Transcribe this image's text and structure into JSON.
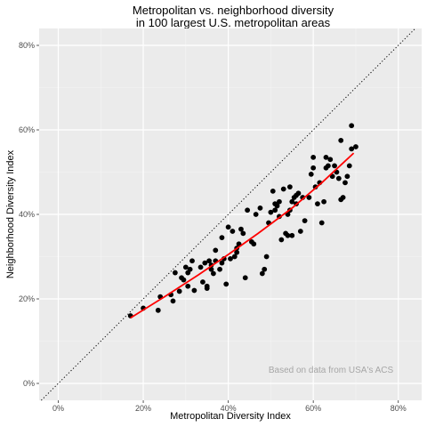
{
  "chart_data": {
    "type": "scatter",
    "title": "Metropolitan vs. neighborhood diversity",
    "subtitle": "in 100 largest U.S. metropolitan areas",
    "xlabel": "Metropolitan Diversity Index",
    "ylabel": "Neighborhood Diversity Index",
    "xlim": [
      -0.045,
      0.855
    ],
    "ylim": [
      -0.04,
      0.84
    ],
    "x_ticks": [
      0,
      0.2,
      0.4,
      0.6,
      0.8
    ],
    "x_tick_labels": [
      "0%",
      "20%",
      "40%",
      "60%",
      "80%"
    ],
    "y_ticks": [
      0,
      0.2,
      0.4,
      0.6,
      0.8
    ],
    "y_tick_labels": [
      "0%",
      "20%",
      "40%",
      "60%",
      "80%"
    ],
    "grid": true,
    "annotation": "Based on data from USA's ACS",
    "reference_line": {
      "type": "identity",
      "style": "dotted",
      "color": "#000000"
    },
    "fit_line": {
      "color": "#ff0000",
      "points": [
        [
          0.17,
          0.155
        ],
        [
          0.25,
          0.205
        ],
        [
          0.33,
          0.257
        ],
        [
          0.4,
          0.305
        ],
        [
          0.47,
          0.355
        ],
        [
          0.55,
          0.415
        ],
        [
          0.62,
          0.475
        ],
        [
          0.695,
          0.545
        ]
      ]
    },
    "points": [
      [
        0.17,
        0.16
      ],
      [
        0.2,
        0.178
      ],
      [
        0.235,
        0.173
      ],
      [
        0.24,
        0.205
      ],
      [
        0.265,
        0.21
      ],
      [
        0.27,
        0.195
      ],
      [
        0.275,
        0.262
      ],
      [
        0.285,
        0.218
      ],
      [
        0.29,
        0.25
      ],
      [
        0.295,
        0.245
      ],
      [
        0.3,
        0.275
      ],
      [
        0.305,
        0.23
      ],
      [
        0.305,
        0.262
      ],
      [
        0.31,
        0.27
      ],
      [
        0.315,
        0.29
      ],
      [
        0.32,
        0.22
      ],
      [
        0.335,
        0.275
      ],
      [
        0.34,
        0.24
      ],
      [
        0.345,
        0.285
      ],
      [
        0.35,
        0.225
      ],
      [
        0.35,
        0.23
      ],
      [
        0.355,
        0.29
      ],
      [
        0.36,
        0.27
      ],
      [
        0.36,
        0.28
      ],
      [
        0.365,
        0.26
      ],
      [
        0.37,
        0.29
      ],
      [
        0.37,
        0.315
      ],
      [
        0.38,
        0.27
      ],
      [
        0.385,
        0.285
      ],
      [
        0.385,
        0.345
      ],
      [
        0.39,
        0.295
      ],
      [
        0.395,
        0.235
      ],
      [
        0.4,
        0.37
      ],
      [
        0.405,
        0.295
      ],
      [
        0.41,
        0.36
      ],
      [
        0.415,
        0.3
      ],
      [
        0.42,
        0.31
      ],
      [
        0.42,
        0.32
      ],
      [
        0.425,
        0.33
      ],
      [
        0.43,
        0.365
      ],
      [
        0.435,
        0.355
      ],
      [
        0.44,
        0.25
      ],
      [
        0.445,
        0.41
      ],
      [
        0.455,
        0.335
      ],
      [
        0.46,
        0.33
      ],
      [
        0.465,
        0.4
      ],
      [
        0.475,
        0.415
      ],
      [
        0.48,
        0.26
      ],
      [
        0.485,
        0.27
      ],
      [
        0.49,
        0.3
      ],
      [
        0.495,
        0.38
      ],
      [
        0.5,
        0.405
      ],
      [
        0.505,
        0.455
      ],
      [
        0.51,
        0.41
      ],
      [
        0.51,
        0.425
      ],
      [
        0.515,
        0.42
      ],
      [
        0.52,
        0.395
      ],
      [
        0.52,
        0.43
      ],
      [
        0.525,
        0.34
      ],
      [
        0.53,
        0.46
      ],
      [
        0.535,
        0.355
      ],
      [
        0.54,
        0.35
      ],
      [
        0.54,
        0.4
      ],
      [
        0.545,
        0.41
      ],
      [
        0.545,
        0.465
      ],
      [
        0.55,
        0.35
      ],
      [
        0.55,
        0.43
      ],
      [
        0.555,
        0.44
      ],
      [
        0.56,
        0.425
      ],
      [
        0.56,
        0.445
      ],
      [
        0.565,
        0.45
      ],
      [
        0.57,
        0.36
      ],
      [
        0.575,
        0.44
      ],
      [
        0.58,
        0.385
      ],
      [
        0.59,
        0.44
      ],
      [
        0.595,
        0.495
      ],
      [
        0.6,
        0.51
      ],
      [
        0.6,
        0.535
      ],
      [
        0.605,
        0.465
      ],
      [
        0.61,
        0.425
      ],
      [
        0.615,
        0.475
      ],
      [
        0.62,
        0.38
      ],
      [
        0.625,
        0.43
      ],
      [
        0.63,
        0.51
      ],
      [
        0.63,
        0.535
      ],
      [
        0.635,
        0.515
      ],
      [
        0.64,
        0.53
      ],
      [
        0.645,
        0.49
      ],
      [
        0.65,
        0.515
      ],
      [
        0.655,
        0.5
      ],
      [
        0.66,
        0.485
      ],
      [
        0.665,
        0.435
      ],
      [
        0.67,
        0.44
      ],
      [
        0.665,
        0.575
      ],
      [
        0.675,
        0.475
      ],
      [
        0.68,
        0.49
      ],
      [
        0.685,
        0.515
      ],
      [
        0.69,
        0.555
      ],
      [
        0.69,
        0.61
      ],
      [
        0.7,
        0.56
      ]
    ]
  }
}
